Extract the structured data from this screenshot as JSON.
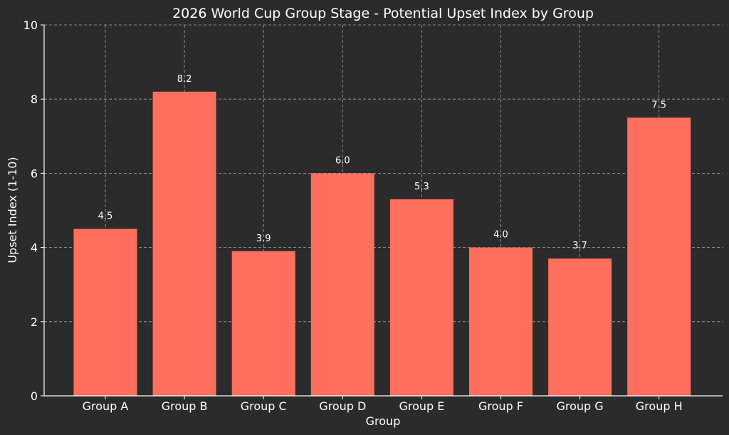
{
  "chart_data": {
    "type": "bar",
    "title": "2026 World Cup Group Stage - Potential Upset Index by Group",
    "xlabel": "Group",
    "ylabel": "Upset Index (1-10)",
    "categories": [
      "Group A",
      "Group B",
      "Group C",
      "Group D",
      "Group E",
      "Group F",
      "Group G",
      "Group H"
    ],
    "values": [
      4.5,
      8.2,
      3.9,
      6.0,
      5.3,
      4.0,
      3.7,
      7.5
    ],
    "value_labels": [
      "4.5",
      "8.2",
      "3.9",
      "6.0",
      "5.3",
      "4.0",
      "3.7",
      "7.5"
    ],
    "ylim": [
      0,
      10
    ],
    "yticks": [
      0,
      2,
      4,
      6,
      8,
      10
    ],
    "grid": true,
    "bar_color": "#ff6f5e",
    "background_color": "#2b2b2b",
    "text_color": "#ffffff"
  }
}
